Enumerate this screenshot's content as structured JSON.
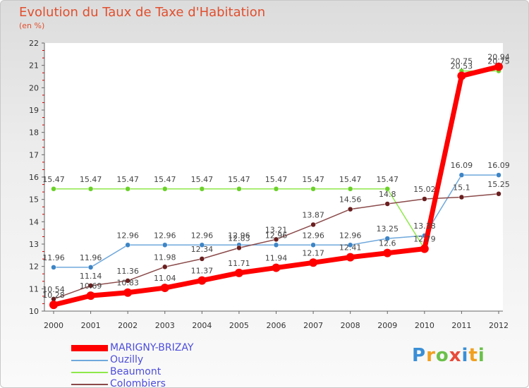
{
  "header": {
    "title": "Evolution du Taux de Taxe d'Habitation",
    "subtitle": "(en %)"
  },
  "logo": {
    "text": "Proxiti"
  },
  "chart_data": {
    "type": "line",
    "title": "Evolution du Taux de Taxe d'Habitation",
    "ylabel": "(en %)",
    "xlabel": "",
    "x": [
      "2000",
      "2001",
      "2002",
      "2003",
      "2004",
      "2005",
      "2006",
      "2007",
      "2008",
      "2009",
      "2010",
      "2011",
      "2012"
    ],
    "ylim": [
      10,
      22
    ],
    "yticks": [
      "10",
      "11",
      "12",
      "13",
      "14",
      "15",
      "16",
      "17",
      "18",
      "19",
      "20",
      "21",
      "22"
    ],
    "grid": false,
    "legend": "bottom-left",
    "series": [
      {
        "name": "MARIGNY-BRIZAY",
        "color": "#ff0000",
        "marker": "#ff0000",
        "values": [
          10.28,
          10.69,
          10.83,
          11.04,
          11.37,
          11.71,
          11.94,
          12.17,
          12.41,
          12.6,
          12.79,
          20.53,
          20.94
        ],
        "labels": [
          "10.28",
          "10.69",
          "10.83",
          "11.04",
          "11.37",
          "11.71",
          "11.94",
          "12.17",
          "12.41",
          "12.6",
          "12.79",
          "20.53",
          "20.94"
        ]
      },
      {
        "name": "Ouzilly",
        "color": "#6fa8dc",
        "marker": "#3d85c6",
        "values": [
          11.96,
          11.96,
          12.96,
          12.96,
          12.96,
          12.96,
          12.96,
          12.96,
          12.96,
          13.25,
          13.38,
          16.09,
          16.09
        ],
        "labels": [
          "11.96",
          "11.96",
          "12.96",
          "12.96",
          "12.96",
          "12.96",
          "12.96",
          "12.96",
          "12.96",
          "13.25",
          "13.38",
          "16.09",
          "16.09"
        ]
      },
      {
        "name": "Beaumont",
        "color": "#8fe84a",
        "marker": "#6bd12a",
        "values": [
          15.47,
          15.47,
          15.47,
          15.47,
          15.47,
          15.47,
          15.47,
          15.47,
          15.47,
          15.47,
          12.79,
          20.75,
          20.75
        ],
        "labels": [
          "15.47",
          "15.47",
          "15.47",
          "15.47",
          "15.47",
          "15.47",
          "15.47",
          "15.47",
          "15.47",
          "15.47",
          "",
          "20.75",
          "20.75"
        ]
      },
      {
        "name": "Colombiers",
        "color": "#8b4a4a",
        "marker": "#6b1f1f",
        "values": [
          10.54,
          11.14,
          11.36,
          11.98,
          12.34,
          12.83,
          13.21,
          13.87,
          14.56,
          14.8,
          15.02,
          15.1,
          15.25
        ],
        "labels": [
          "10.54",
          "11.14",
          "11.36",
          "11.98",
          "12.34",
          "12.83",
          "13.21",
          "13.87",
          "14.56",
          "14.8",
          "15.02",
          "15.1",
          "15.25"
        ]
      }
    ]
  }
}
